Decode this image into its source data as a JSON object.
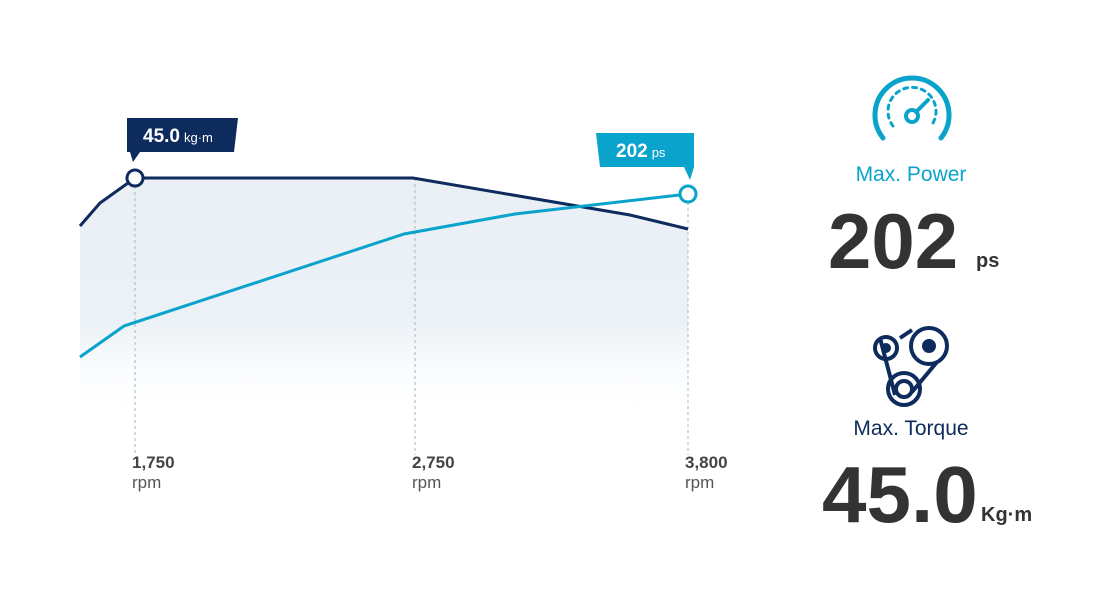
{
  "chart": {
    "callouts": [
      {
        "value": "45.0",
        "unit": "kg·m"
      },
      {
        "value": "202",
        "unit": "ps"
      }
    ],
    "rpm_labels": [
      {
        "value": "1,750",
        "unit": "rpm"
      },
      {
        "value": "2,750",
        "unit": "rpm"
      },
      {
        "value": "3,800",
        "unit": "rpm"
      }
    ]
  },
  "specs": [
    {
      "title": "Max. Power",
      "value": "202",
      "unit": "ps"
    },
    {
      "title": "Max. Torque",
      "value": "45.0",
      "unit": "Kg·m"
    }
  ]
}
